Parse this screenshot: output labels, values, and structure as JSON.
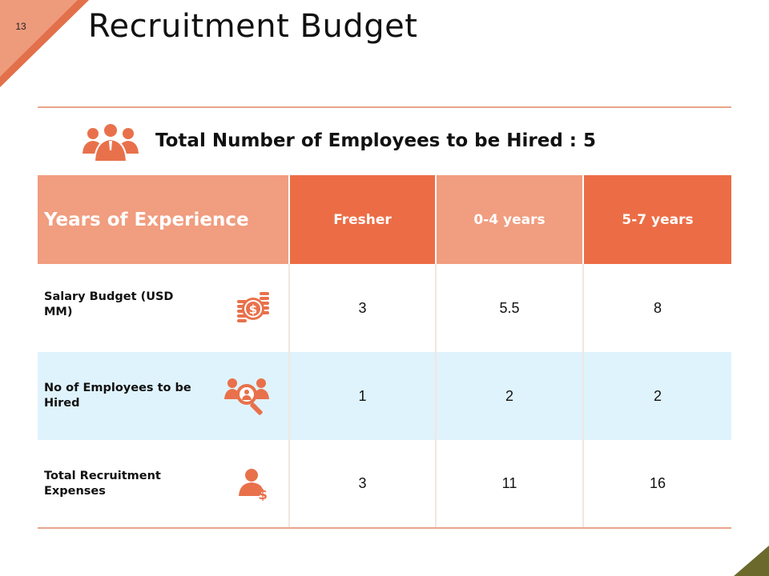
{
  "slide": {
    "number": "13",
    "title": "Recruitment Budget",
    "headline": "Total Number of Employees to be Hired : 5"
  },
  "table": {
    "columns": [
      "Years of Experience",
      "Fresher",
      "0-4 years",
      "5-7 years"
    ],
    "rows": [
      {
        "label": "Salary Budget (USD MM)",
        "icon": "money-coins-icon",
        "values": [
          "3",
          "5.5",
          "8"
        ]
      },
      {
        "label": "No of Employees to be Hired",
        "icon": "people-search-icon",
        "values": [
          "1",
          "2",
          "2"
        ]
      },
      {
        "label": "Total Recruitment Expenses",
        "icon": "person-dollar-icon",
        "values": [
          "3",
          "11",
          "16"
        ]
      }
    ]
  },
  "colors": {
    "accent_dark": "#ec6d45",
    "accent_light": "#f19d7f",
    "row_shade": "#dff3fc",
    "corner_olive": "#6b6a2c"
  }
}
